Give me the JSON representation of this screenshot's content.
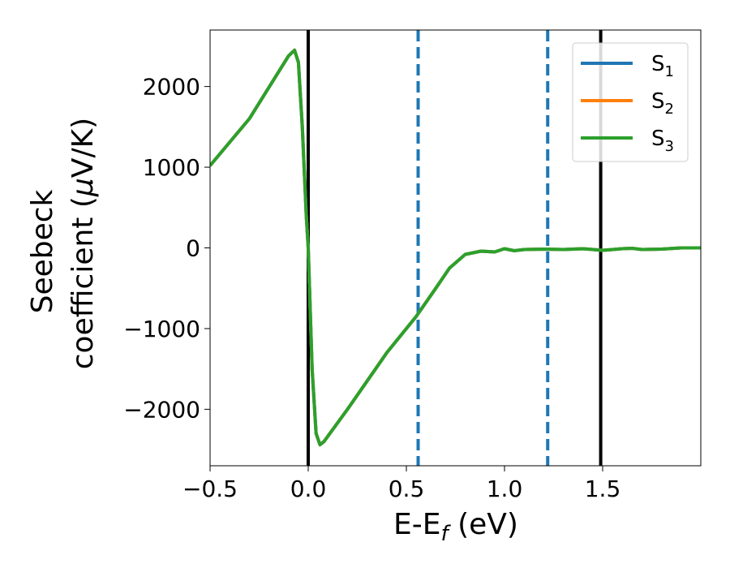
{
  "chart_data": {
    "type": "line",
    "xlabel": {
      "main": "E-E",
      "sub": "f",
      "suffix": " (eV)"
    },
    "ylabel": {
      "line1": "Seebeck",
      "line2_pre": "coefficient  (",
      "mu": "μ",
      "line2_post": "V/K)"
    },
    "xlim": [
      -0.5,
      2.0
    ],
    "ylim": [
      -2700,
      2700
    ],
    "xticks": [
      -0.5,
      0.0,
      0.5,
      1.0,
      1.5
    ],
    "xtick_labels": [
      "−0.5",
      "0.0",
      "0.5",
      "1.0",
      "1.5"
    ],
    "yticks": [
      2000,
      1000,
      0,
      -1000,
      -2000
    ],
    "ytick_labels": [
      "2000",
      "1000",
      "0",
      "−1000",
      "−2000"
    ],
    "grid": false,
    "legend_placement": "top-right",
    "vlines_solid": [
      0.0,
      1.49
    ],
    "vlines_dashed": [
      0.56,
      1.22
    ],
    "series": [
      {
        "name": "S",
        "sub": "1",
        "color": "#1f77b4",
        "x": [
          -0.5,
          -0.3,
          -0.1,
          -0.07,
          -0.05,
          -0.03,
          -0.01,
          0.0,
          0.02,
          0.04,
          0.06,
          0.08,
          0.2,
          0.4,
          0.55,
          0.65,
          0.72,
          0.8,
          0.88,
          0.95,
          1.0,
          1.05,
          1.1,
          1.2,
          1.3,
          1.4,
          1.5,
          1.6,
          1.65,
          1.7,
          1.8,
          1.9,
          2.0
        ],
        "y": [
          1020,
          1600,
          2380,
          2450,
          2300,
          1500,
          400,
          0,
          -1500,
          -2300,
          -2440,
          -2400,
          -2000,
          -1300,
          -850,
          -500,
          -250,
          -80,
          -40,
          -50,
          -10,
          -35,
          -20,
          -15,
          -20,
          -10,
          -30,
          -10,
          -5,
          -20,
          -15,
          0,
          0
        ]
      },
      {
        "name": "S",
        "sub": "2",
        "color": "#ff7f0e",
        "x": [
          -0.5,
          -0.3,
          -0.1,
          -0.07,
          -0.05,
          -0.03,
          -0.01,
          0.0,
          0.02,
          0.04,
          0.06,
          0.08,
          0.2,
          0.4,
          0.55,
          0.65,
          0.72,
          0.8,
          0.88,
          0.95,
          1.0,
          1.05,
          1.1,
          1.2,
          1.3,
          1.4,
          1.5,
          1.6,
          1.65,
          1.7,
          1.8,
          1.9,
          2.0
        ],
        "y": [
          1020,
          1600,
          2380,
          2450,
          2300,
          1500,
          400,
          0,
          -1500,
          -2300,
          -2440,
          -2400,
          -2000,
          -1300,
          -850,
          -500,
          -250,
          -80,
          -40,
          -50,
          -10,
          -35,
          -20,
          -15,
          -20,
          -10,
          -30,
          -10,
          -5,
          -20,
          -15,
          0,
          0
        ]
      },
      {
        "name": "S",
        "sub": "3",
        "color": "#2ca02c",
        "x": [
          -0.5,
          -0.3,
          -0.1,
          -0.07,
          -0.05,
          -0.03,
          -0.01,
          0.0,
          0.02,
          0.04,
          0.06,
          0.08,
          0.2,
          0.4,
          0.55,
          0.65,
          0.72,
          0.8,
          0.88,
          0.95,
          1.0,
          1.05,
          1.1,
          1.2,
          1.3,
          1.4,
          1.5,
          1.6,
          1.65,
          1.7,
          1.8,
          1.9,
          2.0
        ],
        "y": [
          1020,
          1600,
          2380,
          2450,
          2300,
          1500,
          400,
          0,
          -1500,
          -2300,
          -2440,
          -2400,
          -2000,
          -1300,
          -850,
          -500,
          -250,
          -80,
          -40,
          -50,
          -10,
          -35,
          -20,
          -15,
          -20,
          -10,
          -30,
          -10,
          -5,
          -20,
          -15,
          0,
          0
        ]
      }
    ]
  }
}
